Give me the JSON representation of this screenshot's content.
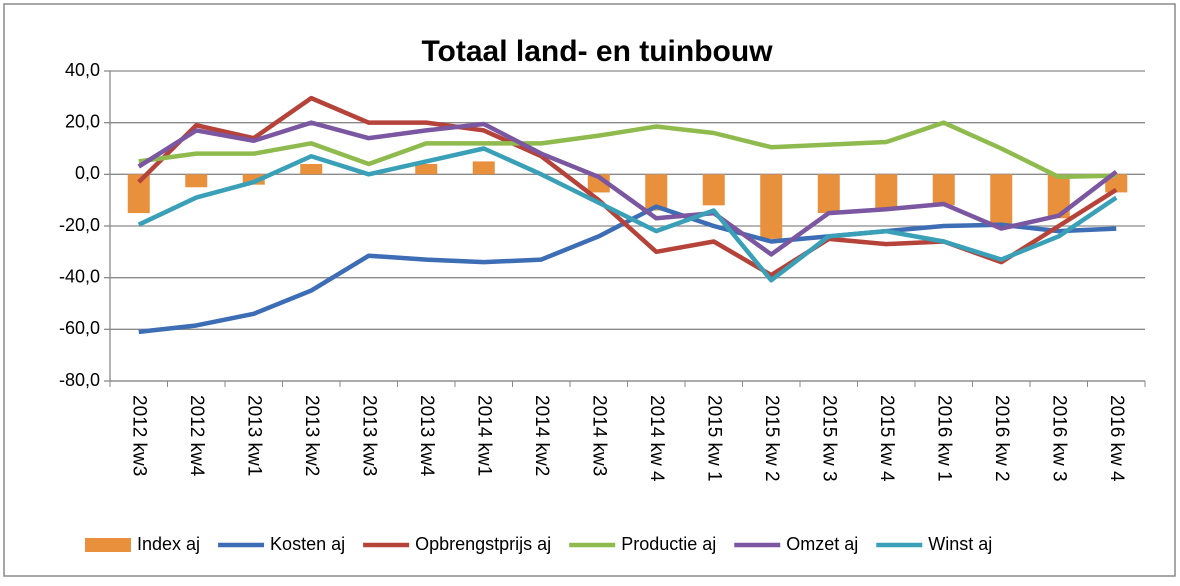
{
  "chart_data": {
    "type": "combo",
    "title": "Totaal land- en tuinbouw",
    "categories": [
      "2012 kw3",
      "2012 kw4",
      "2013 kw1",
      "2013 kw2",
      "2013 kw3",
      "2013 kw4",
      "2014 kw1",
      "2014 kw2",
      "2014 kw3",
      "2014 kw 4",
      "2015 kw 1",
      "2015 kw 2",
      "2015 kw 3",
      "2015 kw 4",
      "2016 kw 1",
      "2016 kw 2",
      "2016 kw 3",
      "2016 kw 4"
    ],
    "series": [
      {
        "name": "Index aj",
        "type": "bar",
        "color": "#e8903c",
        "values": [
          -15,
          -5,
          -4,
          4,
          0,
          4,
          5,
          0,
          -7,
          -14,
          -12,
          -25,
          -15,
          -13,
          -12,
          -20,
          -17,
          -7
        ]
      },
      {
        "name": "Kosten aj",
        "type": "line",
        "color": "#3c6db5",
        "values": [
          -61,
          -58.5,
          -54,
          -45,
          -31.5,
          -33,
          -34,
          -33,
          -24,
          -12.5,
          -20,
          -26,
          -24,
          -22,
          -20,
          -19.5,
          -22,
          -21
        ]
      },
      {
        "name": "Opbrengstprijs aj",
        "type": "line",
        "color": "#b5433a",
        "values": [
          -3,
          19,
          14,
          29.5,
          20,
          20,
          17,
          7,
          -10,
          -30,
          -26,
          -39,
          -25,
          -27,
          -26,
          -34,
          -20,
          -6
        ]
      },
      {
        "name": "Productie aj",
        "type": "line",
        "color": "#8fbb4e",
        "values": [
          5,
          8,
          8,
          12,
          4,
          12,
          12,
          12,
          15,
          18.5,
          16,
          10.5,
          11.5,
          12.5,
          20,
          10,
          -1,
          -0.5
        ]
      },
      {
        "name": "Omzet aj",
        "type": "line",
        "color": "#7a57a0",
        "values": [
          3,
          17,
          13,
          20,
          14,
          17,
          19.5,
          8,
          -1,
          -17,
          -15,
          -31,
          -15,
          -13.5,
          -11.5,
          -21,
          -16,
          1
        ]
      },
      {
        "name": "Winst aj",
        "type": "line",
        "color": "#3aa0b8",
        "values": [
          -19.5,
          -9,
          -3,
          7,
          0,
          5,
          10,
          0,
          -11,
          -22,
          -14,
          -41,
          -24,
          -22,
          -26,
          -33,
          -24,
          -9
        ]
      }
    ],
    "ylim": [
      -80,
      40
    ],
    "yticks": [
      {
        "value": -80,
        "label": "-80,0"
      },
      {
        "value": -60,
        "label": "-60,0"
      },
      {
        "value": -40,
        "label": "-40,0"
      },
      {
        "value": -20,
        "label": "-20,0"
      },
      {
        "value": 0,
        "label": "0,0"
      },
      {
        "value": 20,
        "label": "20,0"
      },
      {
        "value": 40,
        "label": "40,0"
      }
    ],
    "grid": true,
    "legend": "bottom"
  }
}
